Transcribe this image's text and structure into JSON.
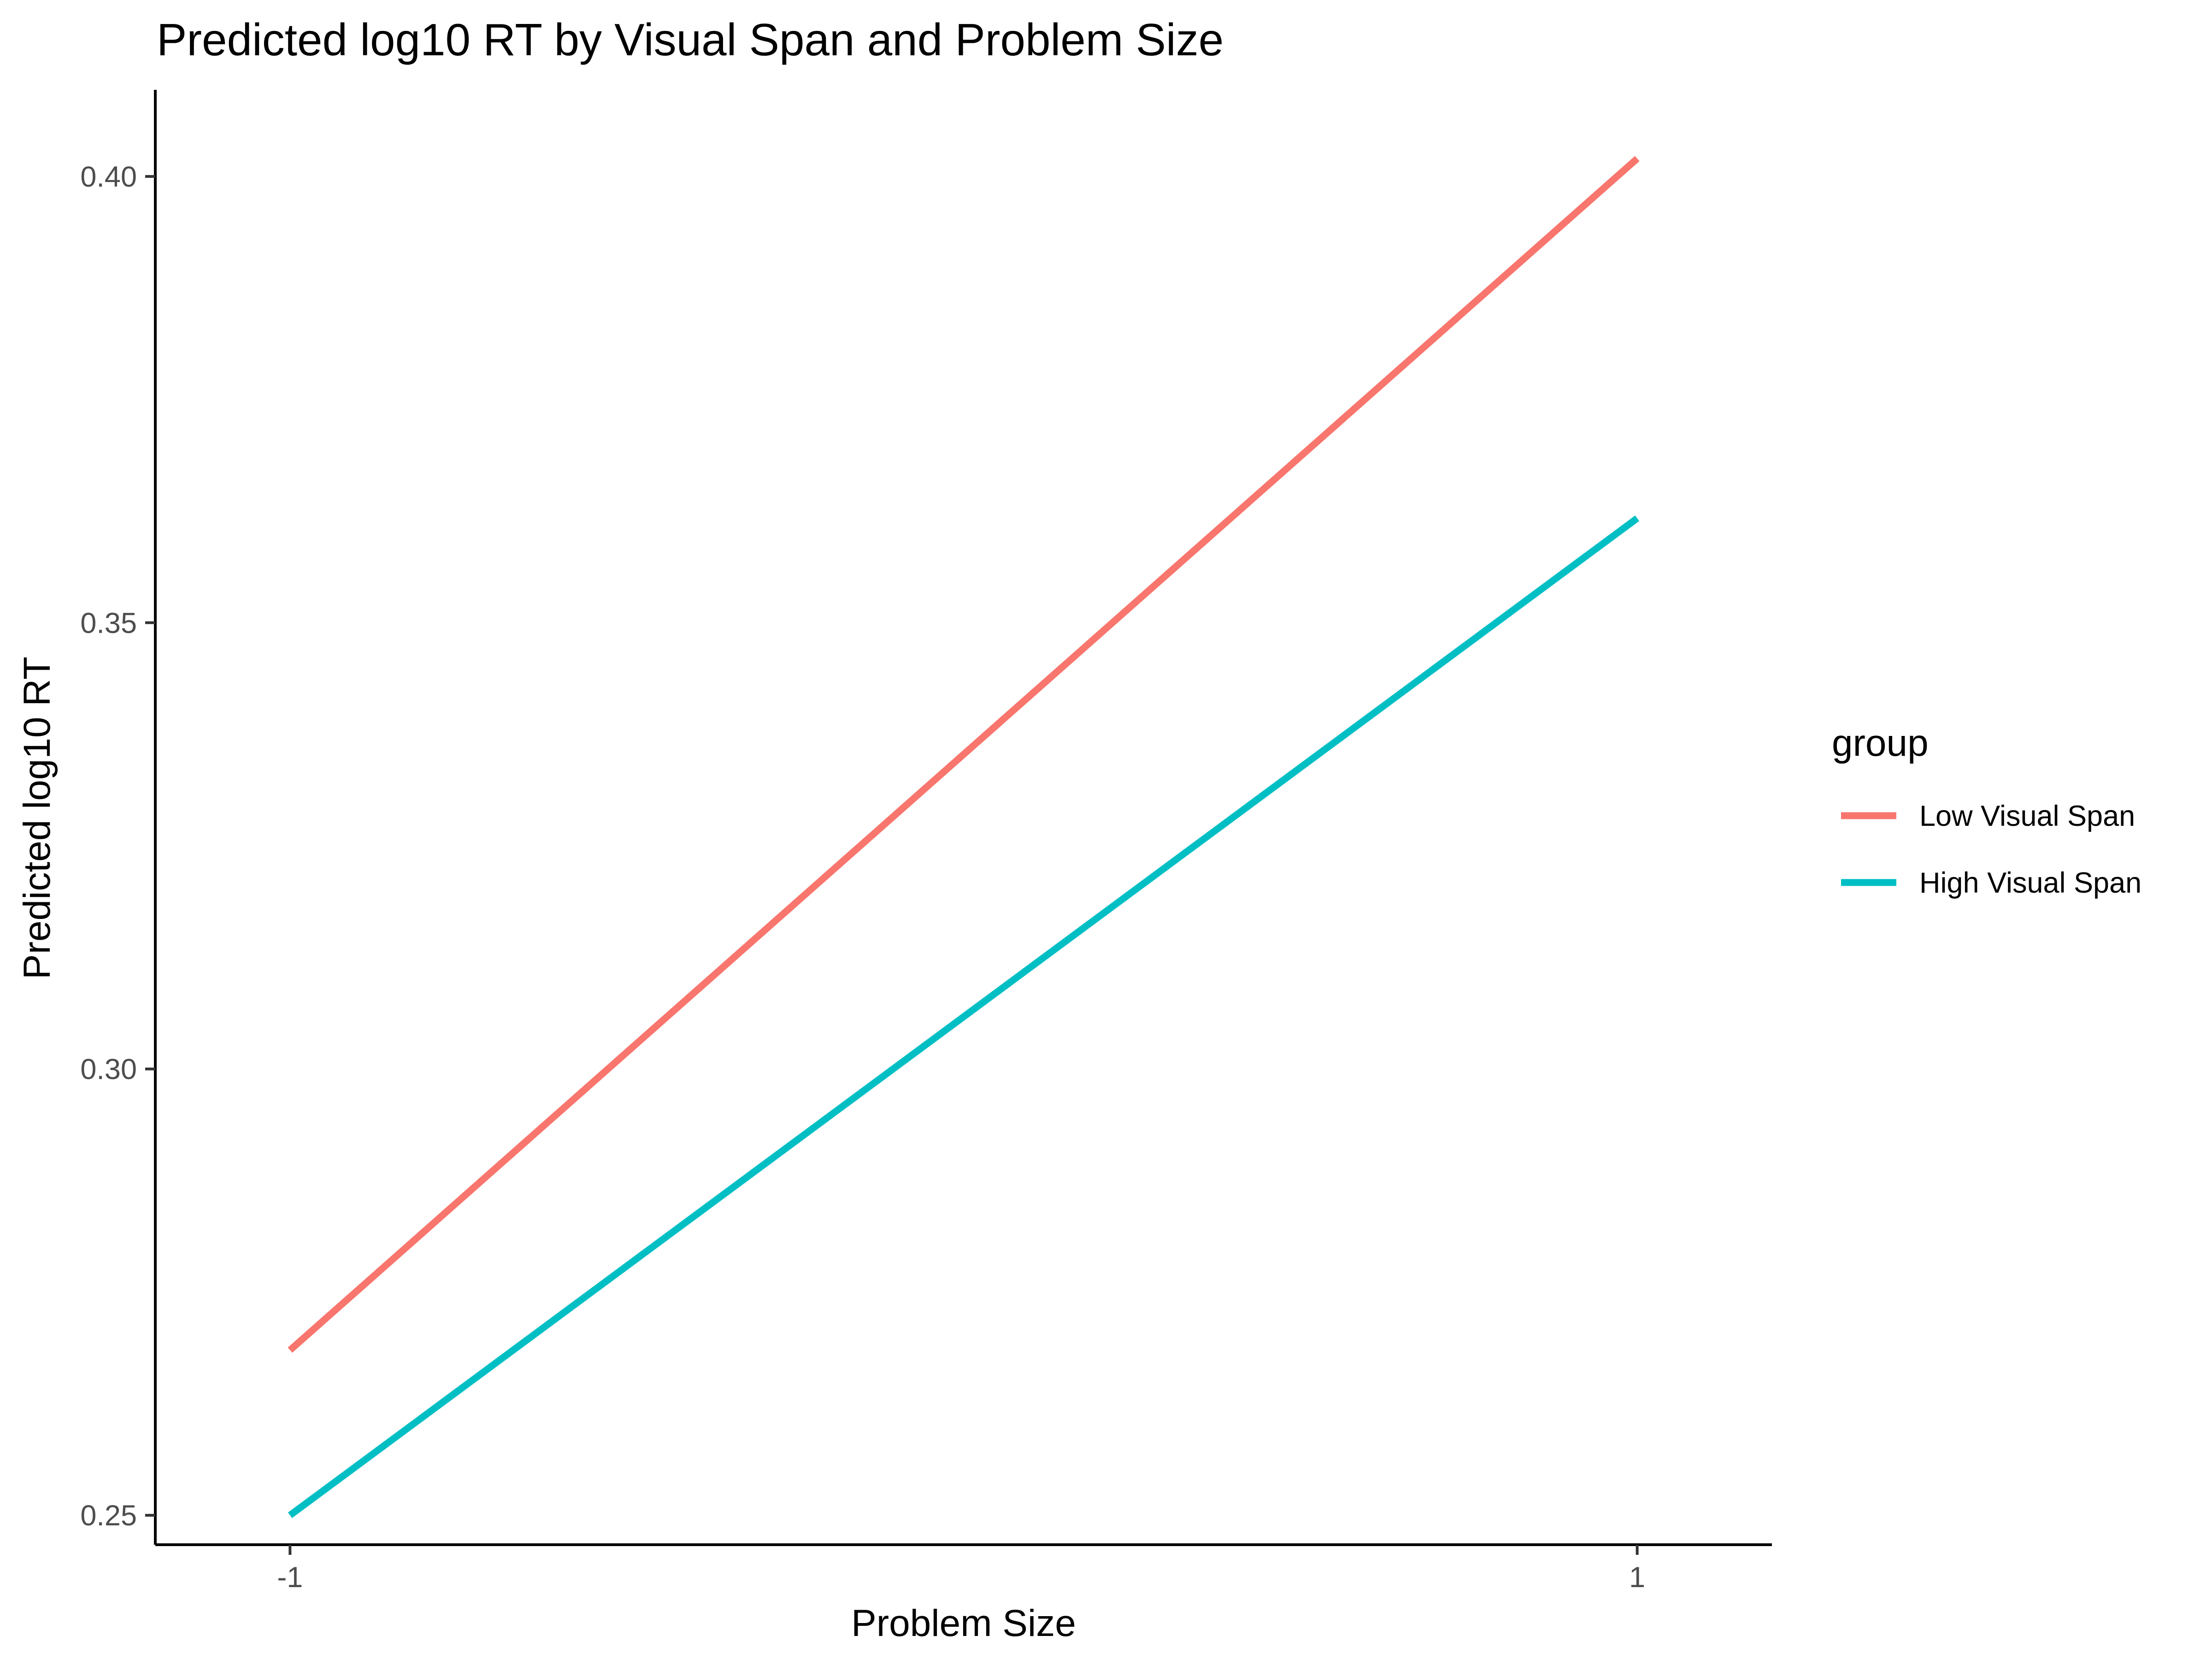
{
  "chart_data": {
    "type": "line",
    "title": "Predicted log10 RT by Visual Span and Problem Size",
    "xlabel": "Problem Size",
    "ylabel": "Predicted log10 RT",
    "x": [
      -1,
      1
    ],
    "xlim": [
      -1.2,
      1.2
    ],
    "ylim": [
      0.2467,
      0.4097
    ],
    "x_ticks": [
      -1,
      1
    ],
    "x_tick_labels": [
      "-1",
      "1"
    ],
    "y_ticks": [
      0.25,
      0.3,
      0.35,
      0.4
    ],
    "y_tick_labels": [
      "0.25",
      "0.30",
      "0.35",
      "0.40"
    ],
    "grid": false,
    "legend": {
      "title": "group",
      "position": "right"
    },
    "series": [
      {
        "name": "Low Visual Span",
        "values": [
          0.2685,
          0.402
        ],
        "color": "#F8766D"
      },
      {
        "name": "High Visual Span",
        "values": [
          0.25,
          0.3617
        ],
        "color": "#00BFC4"
      }
    ]
  }
}
